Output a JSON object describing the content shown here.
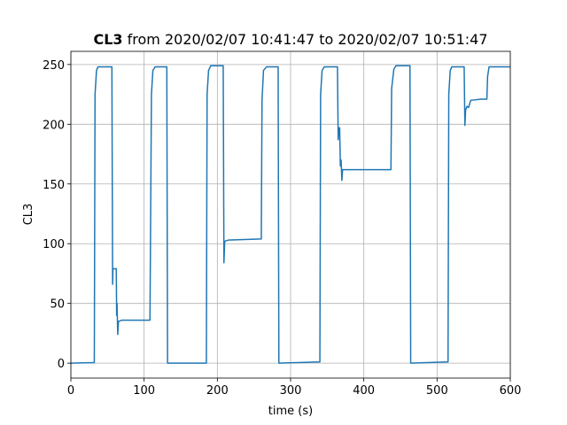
{
  "chart_data": {
    "type": "line",
    "title_bold": "CL3",
    "title": "from 2020/02/07 10:41:47 to 2020/02/07 10:51:47",
    "xlabel": "time (s)",
    "ylabel": "CL3",
    "color": "#1f77b4",
    "x": [
      0,
      32,
      33,
      35,
      37,
      56,
      57,
      57.5,
      62,
      62.5,
      63,
      64,
      65,
      70,
      108,
      110,
      112,
      115,
      131,
      132,
      185,
      186,
      188,
      191,
      208,
      209,
      210,
      215,
      260,
      261,
      263,
      267,
      283,
      284,
      340,
      341,
      343,
      346,
      364,
      365,
      366,
      367,
      368,
      369,
      370,
      371,
      380,
      437,
      438,
      441,
      444,
      463,
      464,
      515,
      516,
      518,
      520,
      537,
      538,
      539,
      541,
      543,
      546,
      560,
      568,
      569,
      571,
      600
    ],
    "values": [
      0,
      0.5,
      225,
      245,
      248,
      248,
      66,
      79,
      79,
      40,
      50,
      24,
      35,
      36,
      36,
      225,
      245,
      248,
      248,
      0,
      0,
      225,
      245,
      249,
      249,
      84,
      102,
      103,
      104,
      220,
      245,
      248,
      248,
      0,
      1,
      225,
      245,
      248,
      248,
      187,
      197,
      197,
      165,
      170,
      153,
      162,
      162,
      162,
      230,
      246,
      249,
      249,
      0,
      1,
      225,
      245,
      248,
      248,
      199,
      212,
      215,
      214,
      220,
      221,
      221,
      240,
      248,
      248
    ],
    "xlim": [
      0,
      600
    ],
    "xticks": [
      0,
      100,
      200,
      300,
      400,
      500,
      600
    ],
    "ylim": [
      -12.5,
      261
    ],
    "yticks": [
      0,
      50,
      100,
      150,
      200,
      250
    ],
    "grid": true
  }
}
